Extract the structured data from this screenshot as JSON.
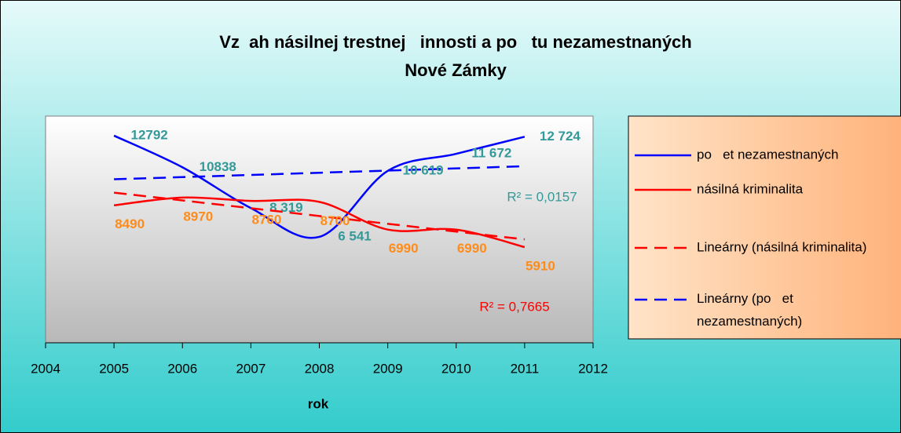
{
  "chart_data": {
    "type": "line",
    "title": "Vz  ah násilnej trestnej   innosti a po   tu nezamestnaných",
    "subtitle": "Nové Zámky",
    "x_label": "rok",
    "x": [
      2005,
      2006,
      2007,
      2008,
      2009,
      2010,
      2011
    ],
    "xlim": [
      2004,
      2012
    ],
    "xticks": [
      2004,
      2005,
      2006,
      2007,
      2008,
      2009,
      2010,
      2011,
      2012
    ],
    "ylim": [
      0,
      14000
    ],
    "series": [
      {
        "name": "po   et nezamestnaných",
        "color": "#0000ff",
        "label_color": "#339999",
        "values": [
          12792,
          10838,
          8319,
          6541,
          10619,
          11672,
          12724
        ],
        "value_labels": [
          "12792",
          "10838",
          "8 319",
          "6 541",
          "10 619",
          "11 672",
          "12 724"
        ],
        "trendline": {
          "name": "Lineárny (po   et nezamestnaných)",
          "label": "R² = 0,0157"
        }
      },
      {
        "name": "násilná kriminalita",
        "color": "#ff0000",
        "label_color": "#ff8c1a",
        "values": [
          8490,
          8970,
          8760,
          8700,
          6990,
          6990,
          5910
        ],
        "value_labels": [
          "8490",
          "8970",
          "8760",
          "8700",
          "6990",
          "6990",
          "5910"
        ],
        "trendline": {
          "name": "Lineárny (násilná kriminalita)",
          "label": "R² = 0,7665"
        }
      }
    ]
  }
}
